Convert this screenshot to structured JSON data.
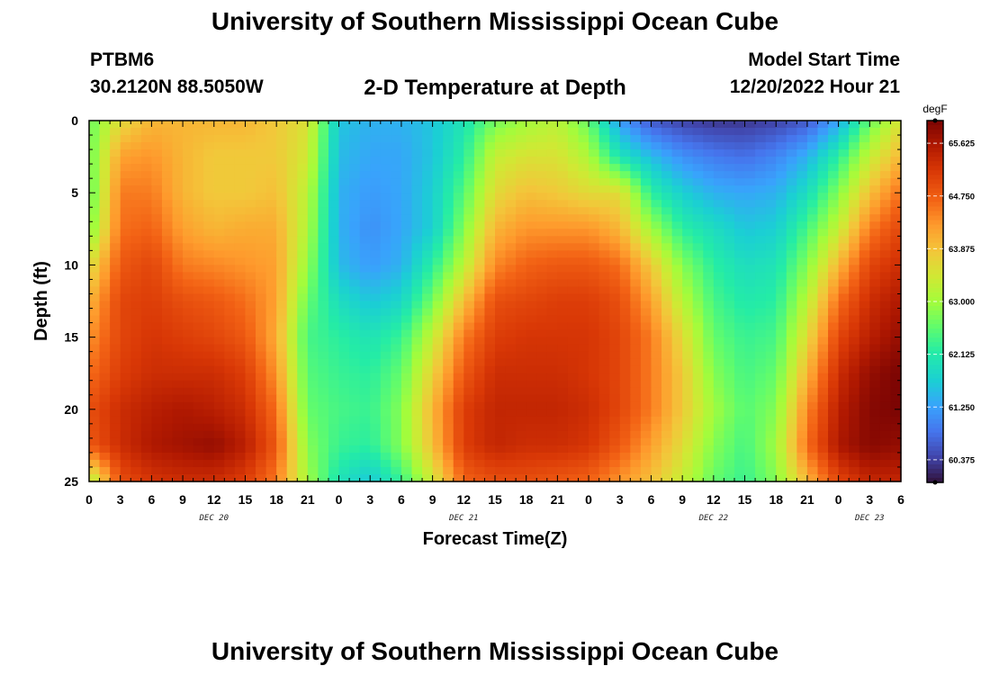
{
  "header": {
    "title": "University of Southern Mississippi Ocean Cube",
    "station_id": "PTBM6",
    "station_coords": "30.2120N  88.5050W",
    "plot_title": "2-D Temperature at Depth",
    "model_start_label": "Model Start Time",
    "model_start_value": "12/20/2022 Hour 21"
  },
  "footer": {
    "title": "University of Southern Mississippi Ocean Cube"
  },
  "chart_data": {
    "type": "heatmap",
    "title": "2-D Temperature at Depth",
    "xlabel": "Forecast Time(Z)",
    "ylabel": "Depth (ft)",
    "x_units": "forecast hours from DEC 20 00Z",
    "xlim": [
      0,
      78
    ],
    "ylim": [
      0,
      25
    ],
    "y_inverted": true,
    "x_tick_labels": [
      "0",
      "3",
      "6",
      "9",
      "12",
      "15",
      "18",
      "21",
      "0",
      "3",
      "6",
      "9",
      "12",
      "15",
      "18",
      "21",
      "0",
      "3",
      "6",
      "9",
      "12",
      "15",
      "18",
      "21",
      "0",
      "3",
      "6"
    ],
    "y_ticks": [
      0,
      5,
      10,
      15,
      20,
      25
    ],
    "day_labels": [
      {
        "label": "DEC 20",
        "hour": 12
      },
      {
        "label": "DEC 21",
        "hour": 36
      },
      {
        "label": "DEC 22",
        "hour": 60
      },
      {
        "label": "DEC 23",
        "hour": 75
      }
    ],
    "colorbar": {
      "unit": "degF",
      "min": 60.0,
      "max": 66.0,
      "tick_labels": [
        "65.625",
        "64.750",
        "63.875",
        "63.000",
        "62.125",
        "61.250",
        "60.375"
      ],
      "colormap": "turbo"
    },
    "grid": false,
    "depth_levels_ft": [
      0,
      2.5,
      5,
      7.5,
      10,
      12.5,
      15,
      17.5,
      20,
      22.5,
      25
    ],
    "time_hours": [
      0,
      3,
      6,
      9,
      12,
      15,
      18,
      21,
      24,
      27,
      30,
      33,
      36,
      39,
      42,
      45,
      48,
      51,
      54,
      57,
      60,
      63,
      66,
      69,
      72,
      75,
      78
    ],
    "temperature_degF": [
      [
        62.6,
        63.6,
        64.0,
        64.0,
        64.0,
        64.0,
        63.8,
        63.5,
        61.6,
        61.4,
        61.4,
        61.6,
        62.0,
        62.7,
        63.0,
        63.2,
        62.6,
        61.2,
        60.6,
        60.4,
        60.3,
        60.3,
        60.4,
        60.6,
        61.3,
        62.6,
        63.5
      ],
      [
        62.6,
        64.2,
        64.3,
        64.0,
        63.8,
        63.8,
        63.8,
        63.4,
        61.5,
        61.3,
        61.3,
        61.6,
        62.2,
        63.3,
        63.5,
        63.5,
        63.1,
        62.0,
        61.5,
        61.1,
        60.9,
        60.8,
        61.0,
        61.4,
        62.2,
        63.3,
        64.0
      ],
      [
        62.5,
        64.5,
        64.5,
        64.0,
        63.8,
        63.8,
        63.9,
        63.2,
        61.4,
        61.2,
        61.3,
        61.7,
        62.5,
        63.6,
        63.9,
        63.8,
        63.6,
        63.6,
        62.2,
        61.7,
        61.4,
        61.3,
        61.4,
        61.9,
        62.8,
        63.9,
        64.6
      ],
      [
        62.7,
        64.6,
        64.7,
        64.2,
        64.0,
        64.1,
        64.1,
        63.1,
        61.4,
        61.1,
        61.3,
        61.7,
        62.8,
        64.0,
        64.3,
        64.3,
        64.3,
        64.0,
        63.0,
        62.2,
        61.9,
        61.6,
        61.7,
        62.4,
        63.3,
        64.5,
        65.0
      ],
      [
        63.5,
        64.8,
        65.0,
        64.5,
        64.4,
        64.3,
        64.2,
        62.9,
        61.5,
        61.2,
        61.4,
        62.2,
        63.2,
        64.4,
        64.7,
        64.8,
        64.8,
        64.6,
        63.8,
        62.8,
        62.2,
        61.9,
        62.0,
        62.8,
        64.0,
        65.0,
        65.3
      ],
      [
        64.0,
        65.0,
        65.1,
        64.9,
        64.8,
        64.6,
        64.2,
        62.6,
        61.9,
        61.6,
        61.8,
        62.7,
        63.9,
        64.9,
        65.0,
        65.1,
        65.1,
        64.9,
        64.2,
        63.2,
        62.4,
        62.1,
        62.2,
        63.2,
        64.6,
        65.3,
        65.6
      ],
      [
        64.3,
        65.0,
        65.2,
        65.1,
        65.0,
        64.8,
        64.1,
        62.4,
        62.2,
        62.0,
        62.3,
        63.3,
        64.5,
        65.1,
        65.2,
        65.2,
        65.2,
        65.0,
        64.5,
        63.6,
        62.6,
        62.3,
        62.4,
        63.6,
        65.0,
        65.5,
        65.8
      ],
      [
        64.6,
        65.1,
        65.3,
        65.3,
        65.3,
        65.1,
        64.3,
        62.5,
        62.3,
        62.2,
        62.6,
        63.7,
        64.8,
        65.3,
        65.3,
        65.3,
        65.2,
        65.0,
        64.5,
        63.8,
        62.8,
        62.4,
        62.6,
        64.0,
        65.3,
        65.8,
        66.0
      ],
      [
        64.9,
        65.3,
        65.5,
        65.6,
        65.5,
        65.3,
        64.6,
        62.6,
        62.4,
        62.3,
        62.8,
        64.0,
        65.1,
        65.4,
        65.4,
        65.4,
        65.3,
        65.0,
        64.5,
        63.8,
        63.0,
        62.5,
        62.8,
        64.4,
        65.5,
        65.9,
        66.0
      ],
      [
        64.8,
        65.3,
        65.6,
        65.7,
        65.8,
        65.5,
        64.8,
        62.8,
        62.3,
        62.2,
        62.8,
        63.9,
        65.1,
        65.4,
        65.3,
        65.3,
        65.2,
        64.8,
        64.2,
        63.6,
        62.8,
        62.4,
        63.0,
        64.6,
        65.6,
        65.9,
        65.8
      ],
      [
        63.0,
        64.9,
        65.2,
        65.3,
        65.3,
        65.1,
        64.5,
        63.0,
        62.0,
        61.6,
        62.3,
        63.4,
        64.7,
        64.9,
        64.9,
        64.8,
        64.7,
        64.3,
        63.9,
        63.3,
        62.6,
        62.3,
        62.8,
        64.0,
        65.0,
        65.4,
        65.4
      ]
    ]
  }
}
